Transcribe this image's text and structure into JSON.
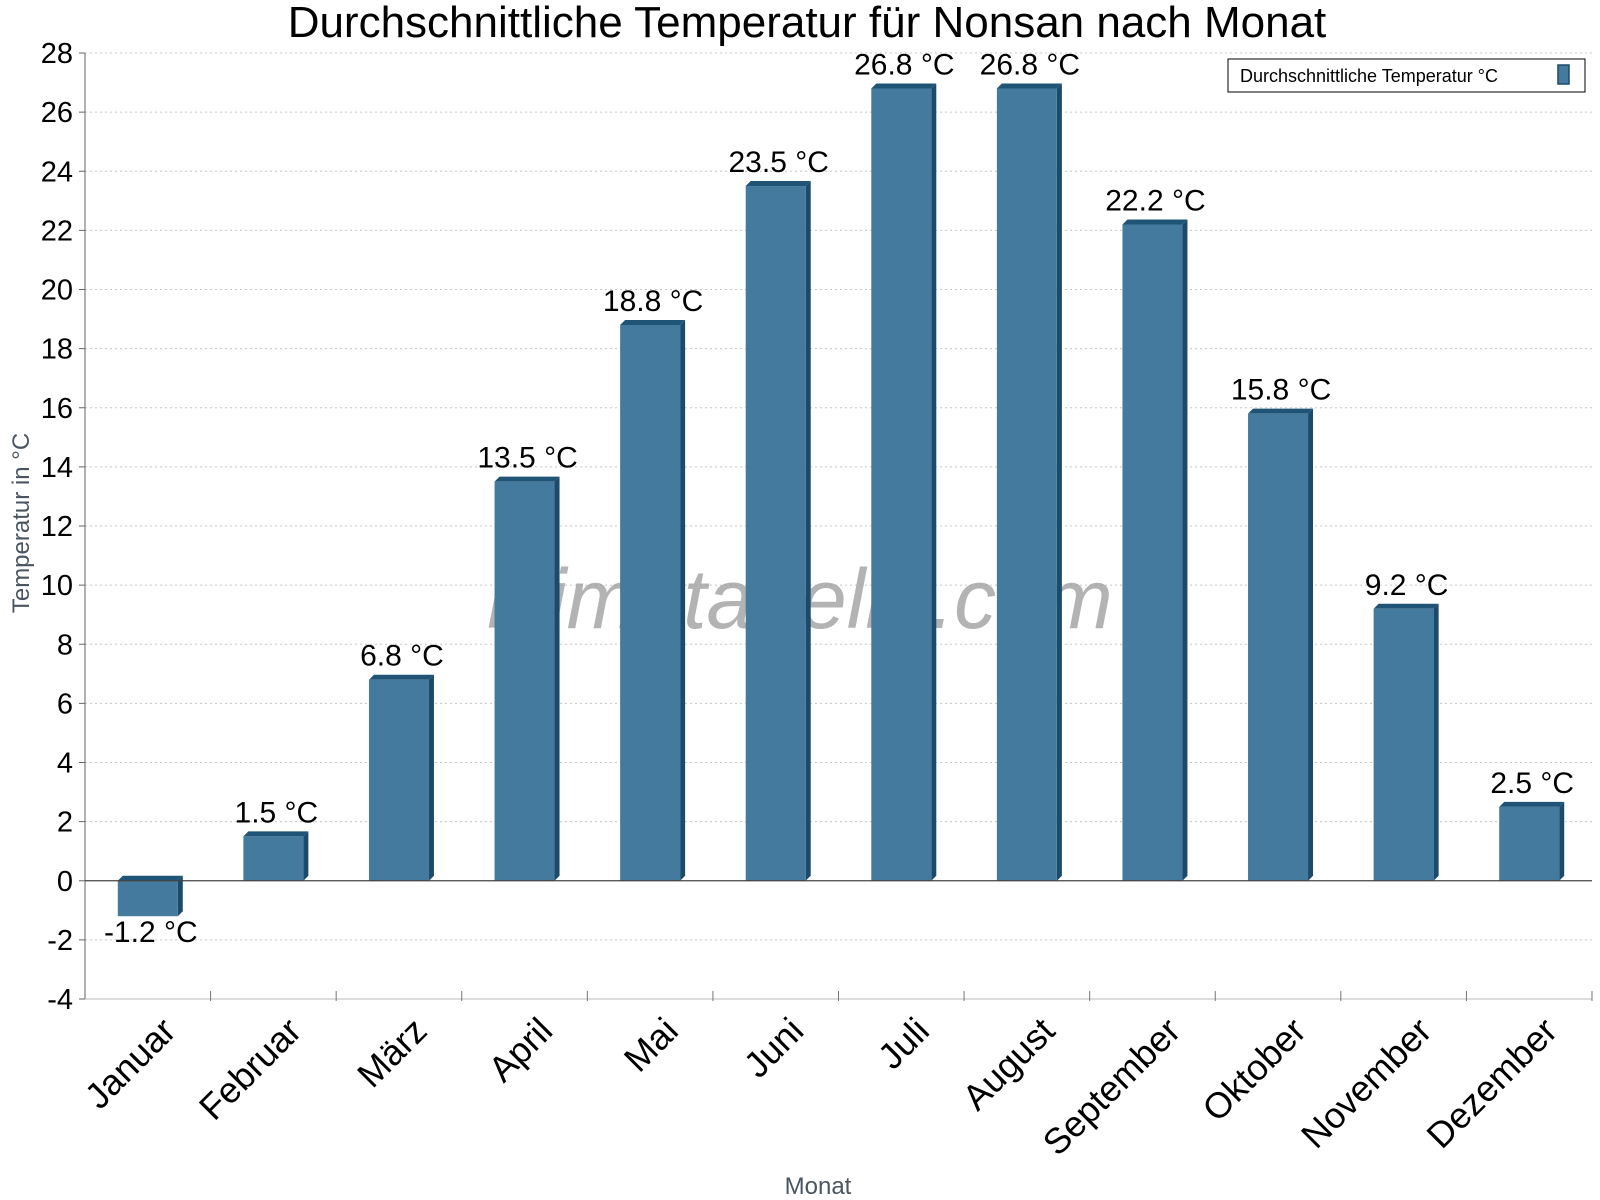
{
  "chart_data": {
    "type": "bar",
    "title": "Durchschnittliche Temperatur für Nonsan nach Monat",
    "xlabel": "Monat",
    "ylabel": "Temperatur in °C",
    "categories": [
      "Januar",
      "Februar",
      "März",
      "April",
      "Mai",
      "Juni",
      "Juli",
      "August",
      "September",
      "Oktober",
      "November",
      "Dezember"
    ],
    "series": [
      {
        "name": "Durchschnittliche Temperatur °C",
        "values": [
          -1.2,
          1.5,
          6.8,
          13.5,
          18.8,
          23.5,
          26.8,
          26.8,
          22.2,
          15.8,
          9.2,
          2.5
        ],
        "labels": [
          "-1.2 °C",
          "1.5 °C",
          "6.8 °C",
          "13.5 °C",
          "18.8 °C",
          "23.5 °C",
          "26.8 °C",
          "26.8 °C",
          "22.2 °C",
          "15.8 °C",
          "9.2 °C",
          "2.5 °C"
        ],
        "color": "#447a9e"
      }
    ],
    "ylim": [
      -4,
      28
    ],
    "yticks": [
      "-4",
      "-2",
      "0",
      "2",
      "4",
      "6",
      "8",
      "10",
      "12",
      "14",
      "16",
      "18",
      "20",
      "22",
      "24",
      "26",
      "28"
    ],
    "grid": true,
    "legend_position": "top-right",
    "watermark": "klimatabelle.com"
  }
}
